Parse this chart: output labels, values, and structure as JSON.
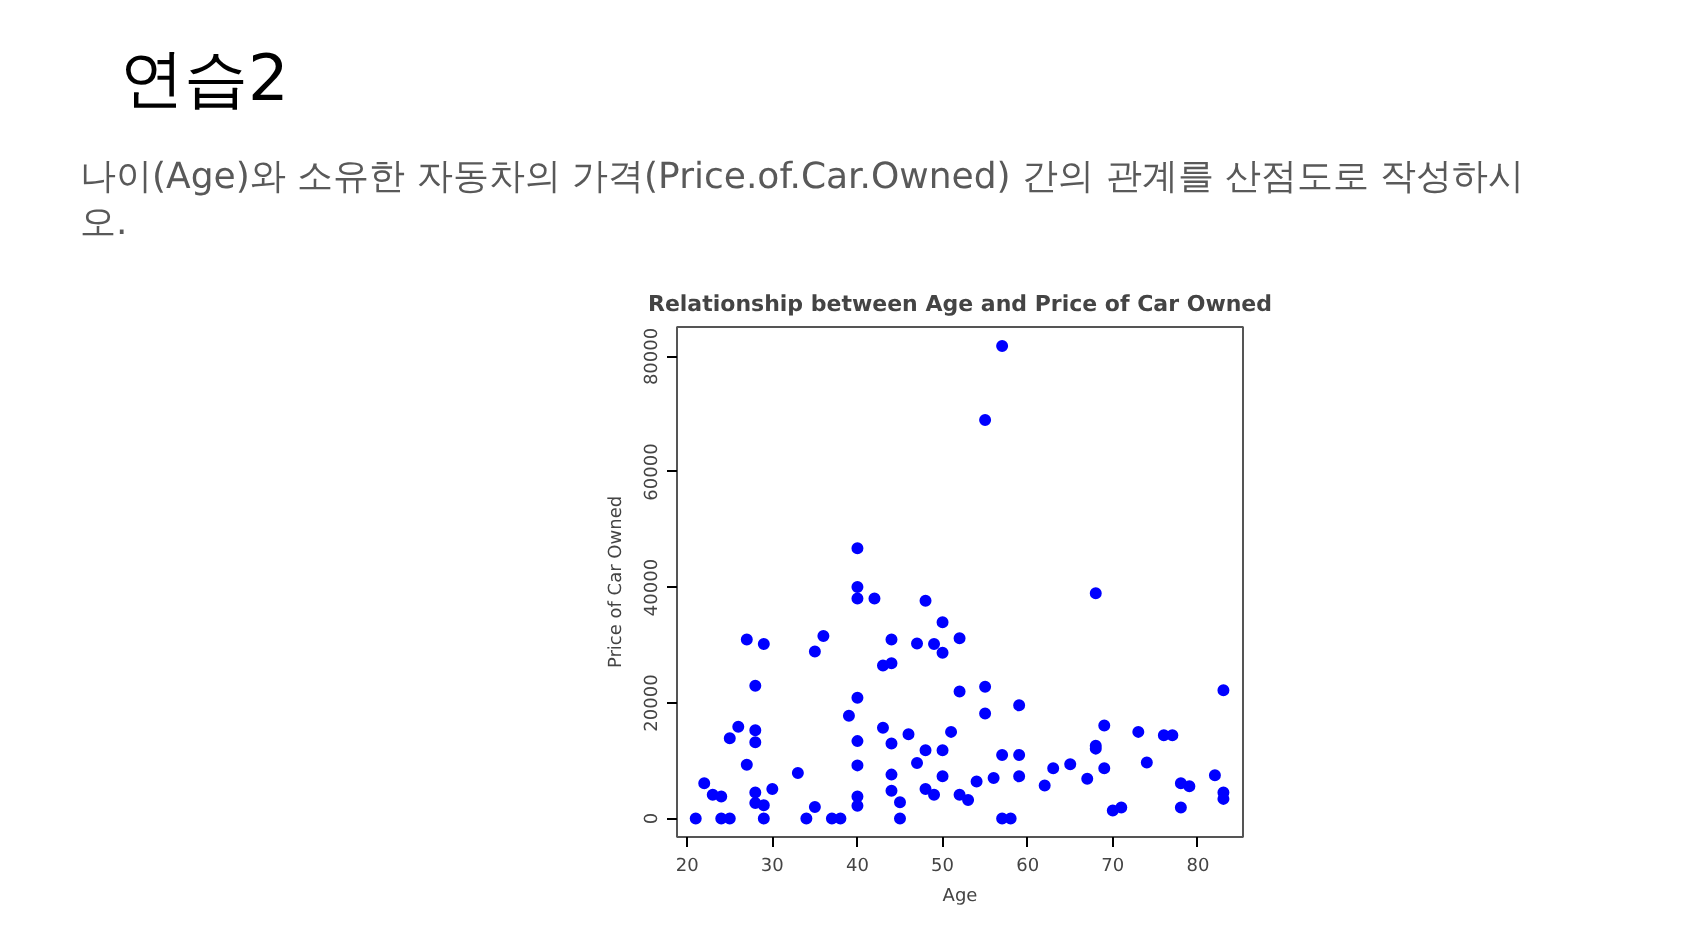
{
  "chart_data": {
    "type": "scatter",
    "title": "Relationship between Age and Price of Car Owned",
    "xlabel": "Age",
    "ylabel": "Price of Car Owned",
    "annotations": [
      "연습2",
      "나이(Age)와 소유한 자동차의 가격(Price.of.Car.Owned) 간의 관계를 산점도로 작성하시오."
    ],
    "x": [
      21,
      22,
      23,
      24,
      24,
      25,
      25,
      26,
      27,
      27,
      28,
      28,
      28,
      28,
      28,
      29,
      29,
      29,
      30,
      33,
      34,
      35,
      35,
      36,
      37,
      38,
      39,
      40,
      40,
      40,
      40,
      40,
      40,
      40,
      40,
      42,
      43,
      44,
      44,
      43,
      44,
      44,
      44,
      45,
      45,
      46,
      47,
      47,
      48,
      48,
      48,
      49,
      49,
      50,
      50,
      50,
      50,
      51,
      52,
      52,
      52,
      53,
      54,
      55,
      55,
      55,
      56,
      57,
      57,
      57,
      58,
      59,
      59,
      59,
      62,
      63,
      65,
      67,
      68,
      68,
      68,
      69,
      69,
      70,
      71,
      73,
      74,
      76,
      77,
      78,
      78,
      79,
      82,
      83,
      83,
      83
    ],
    "values": [
      0,
      6100,
      4100,
      3800,
      0,
      0,
      13900,
      15900,
      9300,
      31000,
      23000,
      15300,
      13200,
      4500,
      2700,
      2300,
      0,
      30200,
      5100,
      7900,
      0,
      28900,
      2000,
      31600,
      0,
      0,
      17800,
      46800,
      40100,
      38100,
      20900,
      13400,
      9200,
      3800,
      2200,
      38100,
      26500,
      26900,
      31000,
      15700,
      13000,
      7600,
      4800,
      2800,
      0,
      14600,
      9600,
      30300,
      37700,
      11800,
      5100,
      4100,
      30200,
      34000,
      28700,
      11800,
      7300,
      15000,
      31200,
      22000,
      4100,
      3200,
      6400,
      69000,
      22800,
      18200,
      7000,
      81800,
      11000,
      0,
      0,
      19600,
      11000,
      7300,
      5700,
      8700,
      9400,
      6900,
      39000,
      12600,
      12100,
      16100,
      8700,
      1400,
      1900,
      15000,
      9700,
      14400,
      14400,
      6100,
      1900,
      5600,
      7500,
      22200,
      4500,
      3400
    ],
    "color": "#0000ff",
    "marker": "circle",
    "xlim": [
      18.8,
      85.3
    ],
    "ylim": [
      -3200,
      85100
    ],
    "xticks": [
      20,
      30,
      40,
      50,
      60,
      70,
      80
    ],
    "yticks": [
      0,
      20000,
      40000,
      60000,
      80000
    ],
    "grid": false
  }
}
